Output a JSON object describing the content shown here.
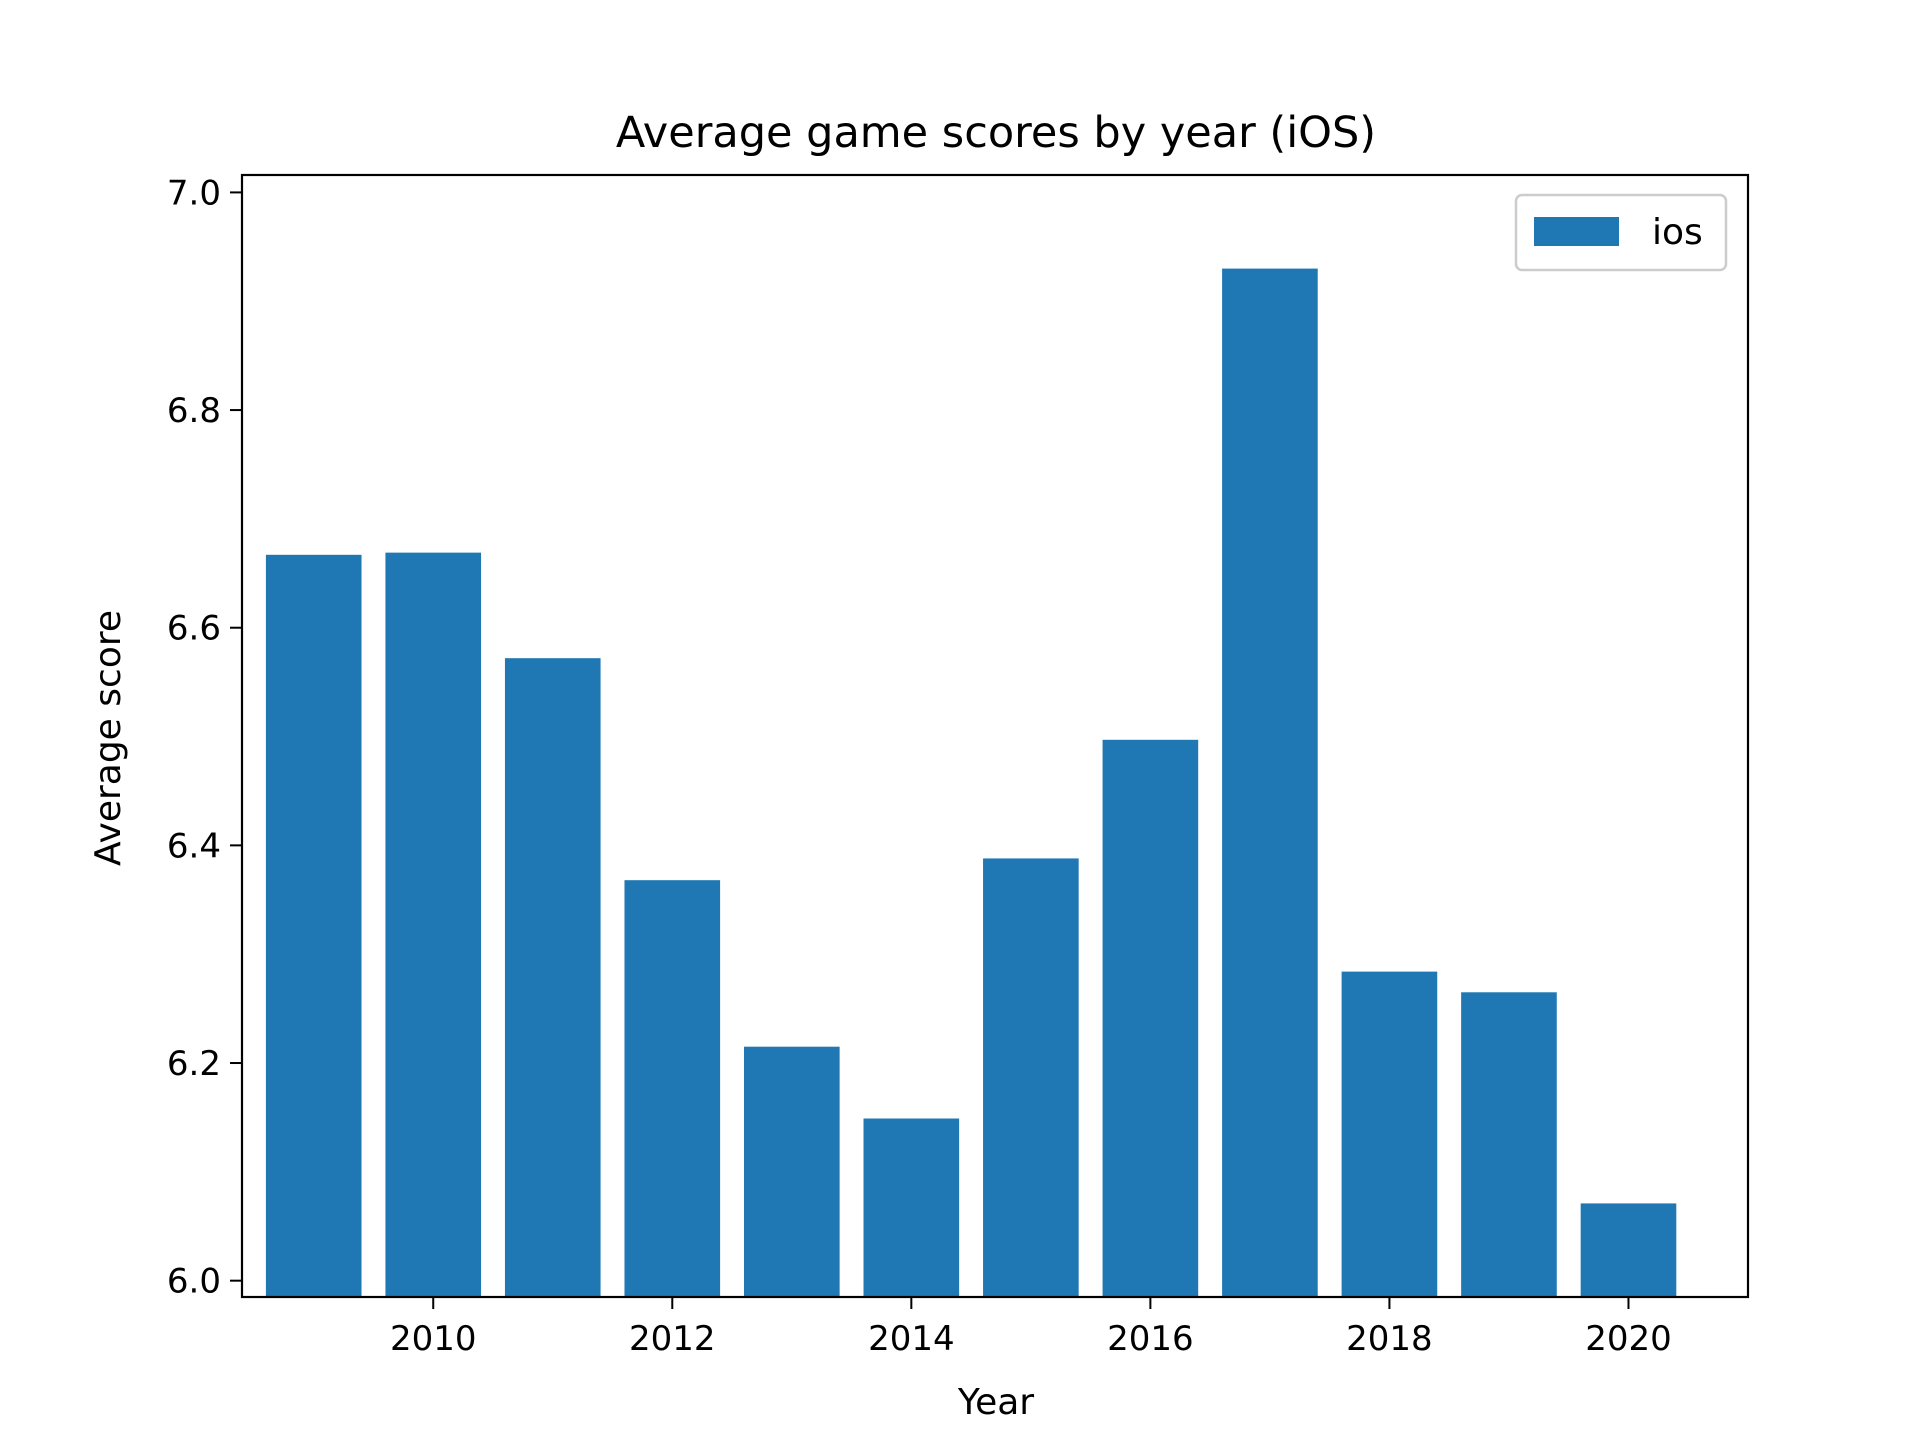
{
  "colors": {
    "bar": "#1f77b4",
    "axis": "#000000",
    "background": "#ffffff",
    "legend_border": "#cccccc"
  },
  "chart_data": {
    "type": "bar",
    "title": "Average game scores by year (iOS)",
    "xlabel": "Year",
    "ylabel": "Average score",
    "x": [
      2009,
      2010,
      2011,
      2012,
      2013,
      2014,
      2015,
      2016,
      2017,
      2018,
      2019,
      2020
    ],
    "series": [
      {
        "name": "ios",
        "values": [
          6.667,
          6.669,
          6.572,
          6.368,
          6.215,
          6.149,
          6.388,
          6.497,
          6.93,
          6.284,
          6.265,
          6.071
        ]
      }
    ],
    "xlim": [
      2008.4,
      2021.0
    ],
    "ylim": [
      5.985,
      7.016
    ],
    "xticks": [
      2010,
      2012,
      2014,
      2016,
      2018,
      2020
    ],
    "yticks": [
      6.0,
      6.2,
      6.4,
      6.6,
      6.8,
      7.0
    ],
    "ytick_labels": [
      "6.0",
      "6.2",
      "6.4",
      "6.6",
      "6.8",
      "7.0"
    ],
    "bar_width": 0.8,
    "grid": false,
    "legend_position": "top-right"
  }
}
